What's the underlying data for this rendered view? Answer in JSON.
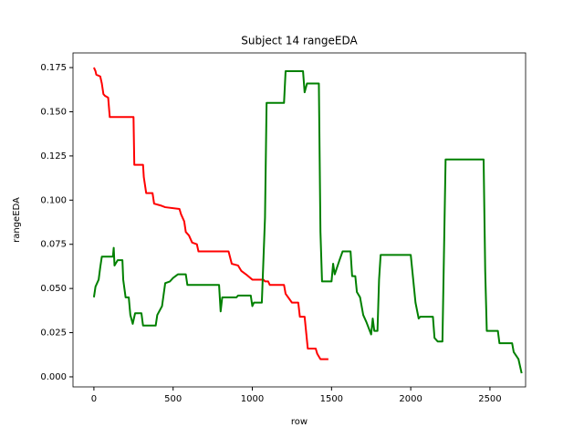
{
  "chart_data": {
    "type": "line",
    "title": "Subject 14 rangeEDA",
    "xlabel": "row",
    "ylabel": "rangeEDA",
    "xlim": [
      -132,
      2725
    ],
    "ylim": [
      -0.0057,
      0.1833
    ],
    "xticks": [
      0,
      500,
      1000,
      1500,
      2000,
      2500
    ],
    "yticks": [
      {
        "value": 0,
        "label": "0.000"
      },
      {
        "value": 0.025,
        "label": "0.025"
      },
      {
        "value": 0.05,
        "label": "0.050"
      },
      {
        "value": 0.075,
        "label": "0.075"
      },
      {
        "value": 0.1,
        "label": "0.100"
      },
      {
        "value": 0.125,
        "label": "0.125"
      },
      {
        "value": 0.15,
        "label": "0.150"
      },
      {
        "value": 0.175,
        "label": "0.175"
      }
    ],
    "grid": false,
    "series": [
      {
        "color": "#ff0000",
        "x": [
          0,
          10,
          15,
          40,
          50,
          60,
          70,
          90,
          100,
          250,
          255,
          310,
          315,
          330,
          370,
          380,
          420,
          450,
          540,
          550,
          570,
          580,
          600,
          620,
          650,
          660,
          850,
          870,
          910,
          930,
          960,
          1000,
          1070,
          1080,
          1100,
          1110,
          1200,
          1210,
          1250,
          1290,
          1300,
          1330,
          1350,
          1400,
          1410,
          1430,
          1480
        ],
        "values": [
          0.175,
          0.173,
          0.171,
          0.17,
          0.166,
          0.16,
          0.159,
          0.158,
          0.147,
          0.147,
          0.12,
          0.12,
          0.113,
          0.104,
          0.104,
          0.098,
          0.097,
          0.096,
          0.095,
          0.092,
          0.088,
          0.082,
          0.08,
          0.076,
          0.075,
          0.071,
          0.071,
          0.064,
          0.063,
          0.06,
          0.058,
          0.055,
          0.055,
          0.054,
          0.054,
          0.052,
          0.052,
          0.047,
          0.042,
          0.042,
          0.034,
          0.034,
          0.016,
          0.016,
          0.013,
          0.01,
          0.01
        ]
      },
      {
        "color": "#008000",
        "x": [
          0,
          10,
          30,
          40,
          50,
          120,
          125,
          130,
          150,
          180,
          185,
          200,
          220,
          230,
          245,
          260,
          300,
          310,
          390,
          400,
          430,
          450,
          480,
          500,
          530,
          580,
          590,
          790,
          800,
          810,
          900,
          910,
          990,
          1000,
          1010,
          1060,
          1080,
          1090,
          1200,
          1210,
          1320,
          1330,
          1345,
          1420,
          1430,
          1440,
          1500,
          1510,
          1520,
          1550,
          1570,
          1620,
          1630,
          1650,
          1660,
          1680,
          1700,
          1720,
          1750,
          1760,
          1770,
          1790,
          1800,
          1810,
          2000,
          2010,
          2030,
          2050,
          2060,
          2140,
          2150,
          2170,
          2200,
          2220,
          2460,
          2470,
          2480,
          2550,
          2560,
          2640,
          2650,
          2680,
          2700
        ],
        "values": [
          0.045,
          0.051,
          0.055,
          0.062,
          0.068,
          0.068,
          0.073,
          0.063,
          0.066,
          0.066,
          0.055,
          0.045,
          0.045,
          0.035,
          0.03,
          0.036,
          0.036,
          0.029,
          0.029,
          0.035,
          0.04,
          0.053,
          0.054,
          0.056,
          0.058,
          0.058,
          0.052,
          0.052,
          0.037,
          0.045,
          0.045,
          0.046,
          0.046,
          0.04,
          0.042,
          0.042,
          0.09,
          0.155,
          0.155,
          0.173,
          0.173,
          0.161,
          0.166,
          0.166,
          0.082,
          0.054,
          0.054,
          0.064,
          0.058,
          0.066,
          0.071,
          0.071,
          0.057,
          0.057,
          0.048,
          0.045,
          0.035,
          0.031,
          0.024,
          0.033,
          0.026,
          0.026,
          0.055,
          0.069,
          0.069,
          0.06,
          0.042,
          0.033,
          0.034,
          0.034,
          0.022,
          0.02,
          0.02,
          0.123,
          0.123,
          0.06,
          0.026,
          0.026,
          0.019,
          0.019,
          0.014,
          0.01,
          0.002
        ]
      }
    ]
  }
}
